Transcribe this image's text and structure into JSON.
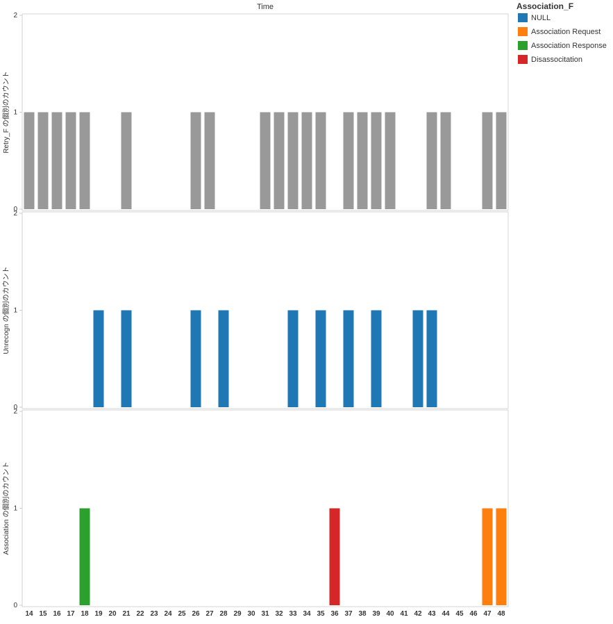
{
  "chart_data": {
    "type": "bar",
    "column_header": "Time",
    "x_categories": [
      "14",
      "15",
      "16",
      "17",
      "18",
      "19",
      "20",
      "21",
      "22",
      "23",
      "24",
      "25",
      "26",
      "27",
      "28",
      "29",
      "30",
      "31",
      "32",
      "33",
      "34",
      "35",
      "36",
      "37",
      "38",
      "39",
      "40",
      "41",
      "42",
      "43",
      "44",
      "45",
      "46",
      "47",
      "48"
    ],
    "ylim": [
      0,
      2
    ],
    "y_ticks": [
      0,
      1,
      2
    ],
    "legend": {
      "title": "Association_F",
      "position": "top-right",
      "items": [
        {
          "name": "NULL",
          "color": "#1f77b4"
        },
        {
          "name": "Association Request",
          "color": "#ff7f0e"
        },
        {
          "name": "Association Response",
          "color": "#2ca02c"
        },
        {
          "name": "Disassocitation",
          "color": "#d62728"
        }
      ]
    },
    "panels": [
      {
        "ylabel": "Retry_F の個別のカウント",
        "bars": [
          {
            "x": "14",
            "value": 1,
            "color": "#999999"
          },
          {
            "x": "15",
            "value": 1,
            "color": "#999999"
          },
          {
            "x": "16",
            "value": 1,
            "color": "#999999"
          },
          {
            "x": "17",
            "value": 1,
            "color": "#999999"
          },
          {
            "x": "18",
            "value": 1,
            "color": "#999999"
          },
          {
            "x": "21",
            "value": 1,
            "color": "#999999"
          },
          {
            "x": "26",
            "value": 1,
            "color": "#999999"
          },
          {
            "x": "27",
            "value": 1,
            "color": "#999999"
          },
          {
            "x": "31",
            "value": 1,
            "color": "#999999"
          },
          {
            "x": "32",
            "value": 1,
            "color": "#999999"
          },
          {
            "x": "33",
            "value": 1,
            "color": "#999999"
          },
          {
            "x": "34",
            "value": 1,
            "color": "#999999"
          },
          {
            "x": "35",
            "value": 1,
            "color": "#999999"
          },
          {
            "x": "37",
            "value": 1,
            "color": "#999999"
          },
          {
            "x": "38",
            "value": 1,
            "color": "#999999"
          },
          {
            "x": "39",
            "value": 1,
            "color": "#999999"
          },
          {
            "x": "40",
            "value": 1,
            "color": "#999999"
          },
          {
            "x": "43",
            "value": 1,
            "color": "#999999"
          },
          {
            "x": "44",
            "value": 1,
            "color": "#999999"
          },
          {
            "x": "47",
            "value": 1,
            "color": "#999999"
          },
          {
            "x": "48",
            "value": 1,
            "color": "#999999"
          }
        ]
      },
      {
        "ylabel": "Unrecogn の個別のカウント",
        "bars": [
          {
            "x": "19",
            "value": 1,
            "color": "#1f77b4"
          },
          {
            "x": "21",
            "value": 1,
            "color": "#1f77b4"
          },
          {
            "x": "26",
            "value": 1,
            "color": "#1f77b4"
          },
          {
            "x": "28",
            "value": 1,
            "color": "#1f77b4"
          },
          {
            "x": "33",
            "value": 1,
            "color": "#1f77b4"
          },
          {
            "x": "35",
            "value": 1,
            "color": "#1f77b4"
          },
          {
            "x": "37",
            "value": 1,
            "color": "#1f77b4"
          },
          {
            "x": "39",
            "value": 1,
            "color": "#1f77b4"
          },
          {
            "x": "42",
            "value": 1,
            "color": "#1f77b4"
          },
          {
            "x": "43",
            "value": 1,
            "color": "#1f77b4"
          }
        ]
      },
      {
        "ylabel": "Association の個別のカウント",
        "bars": [
          {
            "x": "18",
            "value": 1,
            "color": "#2ca02c"
          },
          {
            "x": "36",
            "value": 1,
            "color": "#d62728"
          },
          {
            "x": "47",
            "value": 1,
            "color": "#ff7f0e"
          },
          {
            "x": "48",
            "value": 1,
            "color": "#ff7f0e"
          }
        ]
      }
    ]
  }
}
